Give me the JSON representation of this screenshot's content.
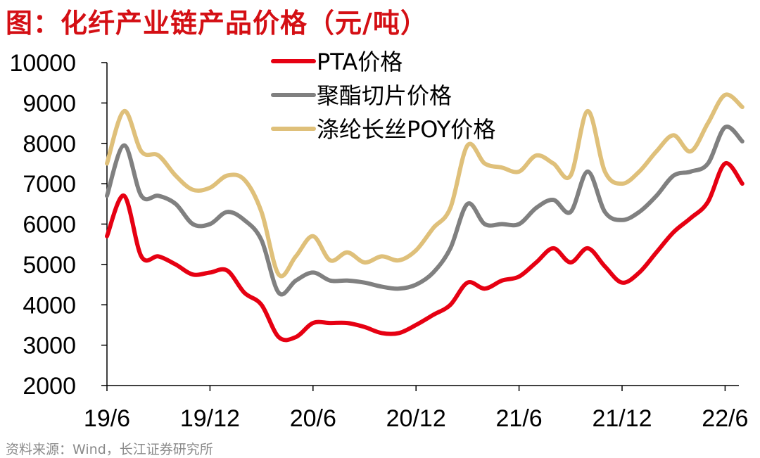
{
  "title": "图：化纤产业链产品价格（元/吨）",
  "source": "资料来源：Wind，长江证券研究所",
  "chart_data": {
    "type": "line",
    "ylim": [
      2000,
      10000
    ],
    "yticks": [
      2000,
      3000,
      4000,
      5000,
      6000,
      7000,
      8000,
      9000,
      10000
    ],
    "xticks": [
      "19/6",
      "19/12",
      "20/6",
      "20/12",
      "21/6",
      "21/12",
      "22/6"
    ],
    "legend_position": "top-center",
    "series": [
      {
        "name": "PTA价格",
        "color": "#e60012",
        "points": [
          [
            "19/6",
            5700
          ],
          [
            "19/7",
            6700
          ],
          [
            "19/8",
            5200
          ],
          [
            "19/9",
            5200
          ],
          [
            "19/10",
            5000
          ],
          [
            "19/11",
            4750
          ],
          [
            "19/12",
            4800
          ],
          [
            "20/1",
            4850
          ],
          [
            "20/2",
            4300
          ],
          [
            "20/3",
            4000
          ],
          [
            "20/4",
            3200
          ],
          [
            "20/5",
            3200
          ],
          [
            "20/6",
            3550
          ],
          [
            "20/7",
            3550
          ],
          [
            "20/8",
            3550
          ],
          [
            "20/9",
            3450
          ],
          [
            "20/10",
            3300
          ],
          [
            "20/11",
            3300
          ],
          [
            "20/12",
            3500
          ],
          [
            "21/1",
            3750
          ],
          [
            "21/2",
            4000
          ],
          [
            "21/3",
            4550
          ],
          [
            "21/4",
            4400
          ],
          [
            "21/5",
            4600
          ],
          [
            "21/6",
            4700
          ],
          [
            "21/7",
            5050
          ],
          [
            "21/8",
            5400
          ],
          [
            "21/9",
            5050
          ],
          [
            "21/10",
            5400
          ],
          [
            "21/11",
            4950
          ],
          [
            "21/12",
            4550
          ],
          [
            "22/1",
            4800
          ],
          [
            "22/2",
            5300
          ],
          [
            "22/3",
            5800
          ],
          [
            "22/4",
            6150
          ],
          [
            "22/5",
            6550
          ],
          [
            "22/6",
            7500
          ],
          [
            "22/7",
            7000
          ]
        ]
      },
      {
        "name": "聚酯切片价格",
        "color": "#808080",
        "points": [
          [
            "19/6",
            6700
          ],
          [
            "19/7",
            7950
          ],
          [
            "19/8",
            6700
          ],
          [
            "19/9",
            6700
          ],
          [
            "19/10",
            6500
          ],
          [
            "19/11",
            6000
          ],
          [
            "19/12",
            6000
          ],
          [
            "20/1",
            6300
          ],
          [
            "20/2",
            6100
          ],
          [
            "20/3",
            5600
          ],
          [
            "20/4",
            4300
          ],
          [
            "20/5",
            4600
          ],
          [
            "20/6",
            4800
          ],
          [
            "20/7",
            4600
          ],
          [
            "20/8",
            4600
          ],
          [
            "20/9",
            4550
          ],
          [
            "20/10",
            4450
          ],
          [
            "20/11",
            4400
          ],
          [
            "20/12",
            4500
          ],
          [
            "21/1",
            4800
          ],
          [
            "21/2",
            5400
          ],
          [
            "21/3",
            6500
          ],
          [
            "21/4",
            6000
          ],
          [
            "21/5",
            6000
          ],
          [
            "21/6",
            6000
          ],
          [
            "21/7",
            6400
          ],
          [
            "21/8",
            6600
          ],
          [
            "21/9",
            6300
          ],
          [
            "21/10",
            7300
          ],
          [
            "21/11",
            6300
          ],
          [
            "21/12",
            6100
          ],
          [
            "22/1",
            6300
          ],
          [
            "22/2",
            6700
          ],
          [
            "22/3",
            7200
          ],
          [
            "22/4",
            7300
          ],
          [
            "22/5",
            7500
          ],
          [
            "22/6",
            8400
          ],
          [
            "22/7",
            8050
          ]
        ]
      },
      {
        "name": "涤纶长丝POY价格",
        "color": "#dfc07a",
        "points": [
          [
            "19/6",
            7500
          ],
          [
            "19/7",
            8800
          ],
          [
            "19/8",
            7800
          ],
          [
            "19/9",
            7700
          ],
          [
            "19/10",
            7200
          ],
          [
            "19/11",
            6850
          ],
          [
            "19/12",
            6900
          ],
          [
            "20/1",
            7200
          ],
          [
            "20/2",
            7100
          ],
          [
            "20/3",
            6300
          ],
          [
            "20/4",
            4750
          ],
          [
            "20/5",
            5200
          ],
          [
            "20/6",
            5700
          ],
          [
            "20/7",
            5100
          ],
          [
            "20/8",
            5300
          ],
          [
            "20/9",
            5050
          ],
          [
            "20/10",
            5200
          ],
          [
            "20/11",
            5100
          ],
          [
            "20/12",
            5350
          ],
          [
            "21/1",
            5900
          ],
          [
            "21/2",
            6400
          ],
          [
            "21/3",
            7950
          ],
          [
            "21/4",
            7500
          ],
          [
            "21/5",
            7400
          ],
          [
            "21/6",
            7300
          ],
          [
            "21/7",
            7700
          ],
          [
            "21/8",
            7500
          ],
          [
            "21/9",
            7200
          ],
          [
            "21/10",
            8800
          ],
          [
            "21/11",
            7300
          ],
          [
            "21/12",
            7000
          ],
          [
            "22/1",
            7300
          ],
          [
            "22/2",
            7800
          ],
          [
            "22/3",
            8200
          ],
          [
            "22/4",
            7800
          ],
          [
            "22/5",
            8500
          ],
          [
            "22/6",
            9200
          ],
          [
            "22/7",
            8900
          ]
        ]
      }
    ]
  }
}
